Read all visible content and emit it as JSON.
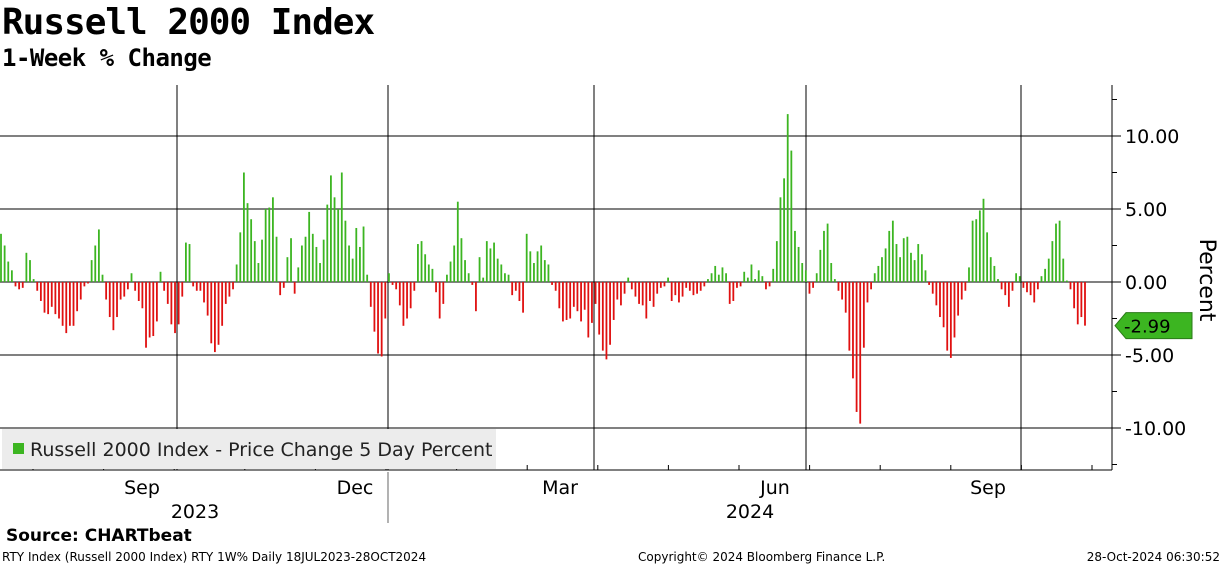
{
  "header": {
    "title": "Russell 2000 Index",
    "subtitle": "1-Week % Change"
  },
  "chart_data": {
    "type": "bar",
    "title": "Russell 2000 Index",
    "subtitle": "1-Week % Change",
    "ylabel": "Percent",
    "ylim": [
      -13,
      13.6
    ],
    "yticks": [
      -10,
      -5,
      0,
      5,
      10
    ],
    "ytick_labels": [
      "-10.00",
      "-5.00",
      "0.00",
      "5.00",
      "10.00"
    ],
    "x_month_labels": [
      "Sep",
      "Dec",
      "Mar",
      "Jun",
      "Sep"
    ],
    "x_year_labels": [
      "2023",
      "2024"
    ],
    "x_start": "18JUL2023",
    "x_end": "28OCT2024",
    "legend": {
      "label": "Russell 2000 Index - Price Change 5 Day Percent",
      "position": "bottom-left"
    },
    "last_value_label": "-2.99",
    "last_value": -2.99,
    "colors": {
      "positive": "#3cb521",
      "negative": "#e01010",
      "last_value_box": "#3cb521"
    },
    "series": [
      {
        "name": "Russell 2000 Index - Price Change 5 Day Percent",
        "values": [
          3.3,
          2.5,
          1.4,
          0.8,
          -0.3,
          -0.5,
          -0.4,
          2.0,
          1.5,
          0.2,
          -0.6,
          -1.3,
          -2.1,
          -2.2,
          -1.7,
          -2.2,
          -2.5,
          -3.0,
          -3.5,
          -3.0,
          -3.0,
          -2.0,
          -1.2,
          -0.3,
          -0.1,
          1.5,
          2.5,
          3.6,
          0.5,
          -1.2,
          -2.4,
          -3.3,
          -2.4,
          -1.2,
          -1.0,
          -0.5,
          0.6,
          -0.6,
          -1.3,
          -1.8,
          -4.5,
          -3.8,
          -3.7,
          -2.7,
          0.7,
          -0.6,
          -1.5,
          -2.9,
          -3.5,
          -2.9,
          -1.0,
          2.7,
          2.6,
          -0.3,
          -0.6,
          -0.6,
          -1.4,
          -2.3,
          -4.2,
          -4.8,
          -4.3,
          -3.0,
          -1.5,
          -1.0,
          -0.5,
          1.2,
          3.4,
          7.5,
          5.4,
          4.3,
          2.8,
          1.3,
          2.9,
          5.0,
          5.1,
          5.8,
          3.1,
          -0.9,
          -0.4,
          1.7,
          3.0,
          -0.8,
          1.0,
          2.5,
          3.1,
          4.8,
          3.3,
          2.4,
          1.3,
          2.9,
          5.3,
          7.3,
          5.8,
          5.0,
          7.5,
          4.2,
          2.5,
          1.6,
          3.7,
          2.4,
          3.8,
          0.5,
          -1.7,
          -3.4,
          -4.9,
          -5.1,
          -2.5,
          0.6,
          -0.2,
          -0.5,
          -1.6,
          -3.0,
          -2.5,
          -1.8,
          -0.6,
          2.6,
          2.8,
          1.9,
          1.2,
          0.9,
          -0.7,
          -2.5,
          -1.5,
          0.5,
          1.4,
          2.5,
          5.5,
          3.0,
          1.5,
          0.6,
          -0.2,
          -2.0,
          1.7,
          0.3,
          2.8,
          2.3,
          2.7,
          1.6,
          1.2,
          0.6,
          0.5,
          -0.9,
          -0.6,
          -1.3,
          -2.1,
          3.3,
          2.1,
          1.3,
          2.1,
          2.5,
          1.5,
          1.2,
          -0.2,
          -0.6,
          -1.8,
          -2.7,
          -2.6,
          -2.5,
          -1.7,
          -2.0,
          -2.7,
          -1.9,
          -3.8,
          -2.8,
          -1.5,
          -3.6,
          -4.7,
          -5.3,
          -4.3,
          -2.6,
          -1.2,
          -1.6,
          -0.8,
          0.3,
          -0.5,
          -1.0,
          -1.5,
          -1.6,
          -2.5,
          -1.3,
          -1.7,
          -0.8,
          -0.4,
          -0.3,
          0.3,
          -1.3,
          -0.9,
          -1.4,
          -1.0,
          -0.4,
          -0.6,
          -0.9,
          -0.8,
          -0.6,
          -0.3,
          0.2,
          0.6,
          1.1,
          0.5,
          1.0,
          0.6,
          -1.5,
          -1.3,
          -0.4,
          -0.3,
          0.7,
          0.3,
          1.2,
          0.2,
          0.8,
          0.4,
          -0.5,
          -0.3,
          0.9,
          2.8,
          5.8,
          7.1,
          11.5,
          9.0,
          3.5,
          2.4,
          1.3,
          0.8,
          -0.8,
          -0.4,
          0.6,
          2.2,
          3.5,
          4.0,
          1.3,
          0.2,
          -0.6,
          -1.2,
          -2.1,
          -4.7,
          -6.6,
          -8.9,
          -9.7,
          -4.5,
          -1.4,
          -0.5,
          0.6,
          1.1,
          1.7,
          2.3,
          3.5,
          4.2,
          2.6,
          1.7,
          3.0,
          3.1,
          2.0,
          1.5,
          2.6,
          1.9,
          0.8,
          -0.2,
          -0.8,
          -1.6,
          -2.4,
          -3.1,
          -4.7,
          -5.2,
          -3.8,
          -2.3,
          -1.2,
          -0.6,
          1.0,
          4.2,
          4.3,
          4.9,
          5.7,
          3.4,
          1.7,
          1.1,
          0.2,
          -0.5,
          -0.9,
          -1.7,
          -0.6,
          0.6,
          0.4,
          -0.4,
          -0.7,
          -0.9,
          -1.4,
          -0.5,
          0.4,
          0.9,
          1.6,
          2.8,
          4.0,
          4.2,
          1.6,
          0.1,
          -0.5,
          -1.8,
          -2.9,
          -2.4,
          -2.99
        ]
      }
    ]
  },
  "source": "Source:  CHARTbeat",
  "footer": {
    "left": "RTY Index (Russell 2000 Index) RTY 1W%  Daily 18JUL2023-28OCT2024",
    "center": "Copyright© 2024 Bloomberg Finance L.P.",
    "right": "28-Oct-2024 06:30:52"
  }
}
